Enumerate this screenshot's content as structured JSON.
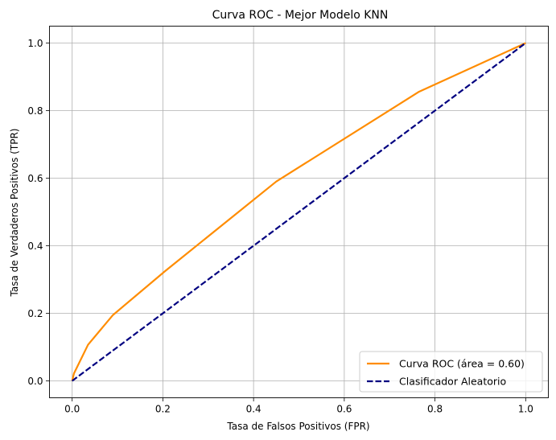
{
  "chart_data": {
    "type": "line",
    "title": "Curva ROC - Mejor Modelo KNN",
    "xlabel": "Tasa de Falsos Positivos (FPR)",
    "ylabel": "Tasa de Verdaderos Positivos (TPR)",
    "xlim": [
      -0.05,
      1.05
    ],
    "ylim": [
      -0.05,
      1.05
    ],
    "grid": true,
    "legend_position": "lower right",
    "x_ticks": [
      "0.0",
      "0.2",
      "0.4",
      "0.6",
      "0.8",
      "1.0"
    ],
    "y_ticks": [
      "0.0",
      "0.2",
      "0.4",
      "0.6",
      "0.8",
      "1.0"
    ],
    "series": [
      {
        "name": "Curva ROC (área = 0.60)",
        "color": "#ff8c00",
        "style": "solid",
        "x": [
          0.0,
          0.004,
          0.035,
          0.09,
          0.205,
          0.45,
          0.765,
          1.0
        ],
        "y": [
          0.0,
          0.022,
          0.107,
          0.195,
          0.325,
          0.59,
          0.856,
          1.0
        ]
      },
      {
        "name": "Clasificador Aleatorio",
        "color": "#000080",
        "style": "dashed",
        "x": [
          0.0,
          1.0
        ],
        "y": [
          0.0,
          1.0
        ]
      }
    ]
  }
}
